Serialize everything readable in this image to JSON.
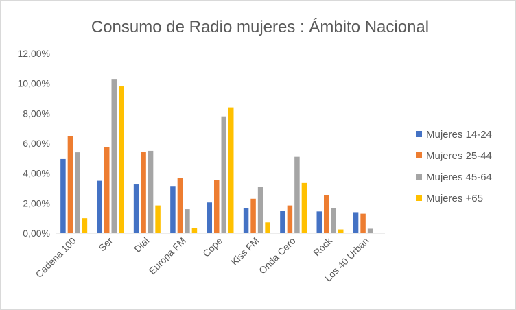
{
  "chart_data": {
    "type": "bar",
    "title": "Consumo de Radio mujeres : Ámbito Nacional",
    "xlabel": "",
    "ylabel": "",
    "ylim": [
      0,
      12
    ],
    "yticks": [
      0,
      2,
      4,
      6,
      8,
      10,
      12
    ],
    "ytick_labels": [
      "0,00%",
      "2,00%",
      "4,00%",
      "6,00%",
      "8,00%",
      "10,00%",
      "12,00%"
    ],
    "grid": false,
    "legend_position": "right",
    "categories": [
      "Cadena 100",
      "Ser",
      "Dial",
      "Europa FM",
      "Cope",
      "Kiss FM",
      "Onda Cero",
      "Rock",
      "Los 40 Urban"
    ],
    "series": [
      {
        "name": "Mujeres 14-24",
        "color": "#4472c4",
        "values": [
          4.95,
          3.5,
          3.25,
          3.15,
          2.05,
          1.65,
          1.5,
          1.45,
          1.4
        ]
      },
      {
        "name": "Mujeres 25-44",
        "color": "#ed7d31",
        "values": [
          6.5,
          5.75,
          5.45,
          3.7,
          3.55,
          2.3,
          1.85,
          2.55,
          1.3
        ]
      },
      {
        "name": "Mujeres 45-64",
        "color": "#a5a5a5",
        "values": [
          5.4,
          10.3,
          5.5,
          1.6,
          7.8,
          3.1,
          5.1,
          1.65,
          0.3
        ]
      },
      {
        "name": "Mujeres +65",
        "color": "#ffc000",
        "values": [
          1.0,
          9.8,
          1.85,
          0.35,
          8.4,
          0.72,
          3.35,
          0.25,
          0.0
        ]
      }
    ]
  }
}
